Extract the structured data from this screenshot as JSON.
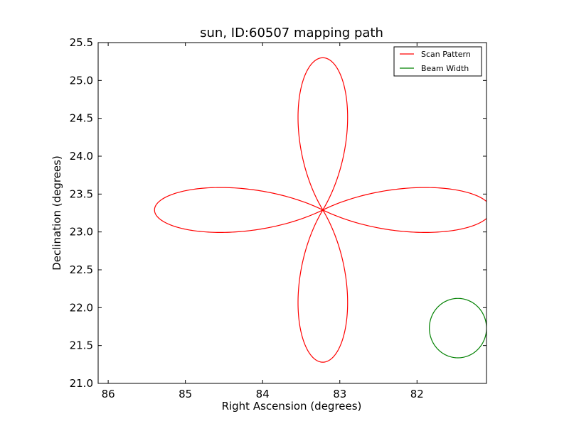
{
  "chart_data": {
    "type": "line",
    "title": "sun, ID:60507 mapping path",
    "xlabel": "Right Ascension (degrees)",
    "ylabel": "Declination (degrees)",
    "xlim": [
      86.13,
      81.1
    ],
    "ylim": [
      21.0,
      25.5
    ],
    "x_inverted": true,
    "xticks": [
      86,
      85,
      84,
      83,
      82
    ],
    "yticks": [
      21.0,
      21.5,
      22.0,
      22.5,
      23.0,
      23.5,
      24.0,
      24.5,
      25.0,
      25.5
    ],
    "grid": false,
    "legend_position": "top-right",
    "series": [
      {
        "name": "Scan Pattern",
        "color": "#ff0000",
        "shape": "four-petal rose",
        "center": [
          83.22,
          23.29
        ],
        "petal_length_x": 2.18,
        "petal_length_y": 2.01,
        "petal_width_x": 1.18,
        "petal_width_y": 1.09
      },
      {
        "name": "Beam Width",
        "color": "#008000",
        "shape": "circle",
        "center": [
          81.47,
          21.73
        ],
        "radius": 0.37
      }
    ]
  }
}
